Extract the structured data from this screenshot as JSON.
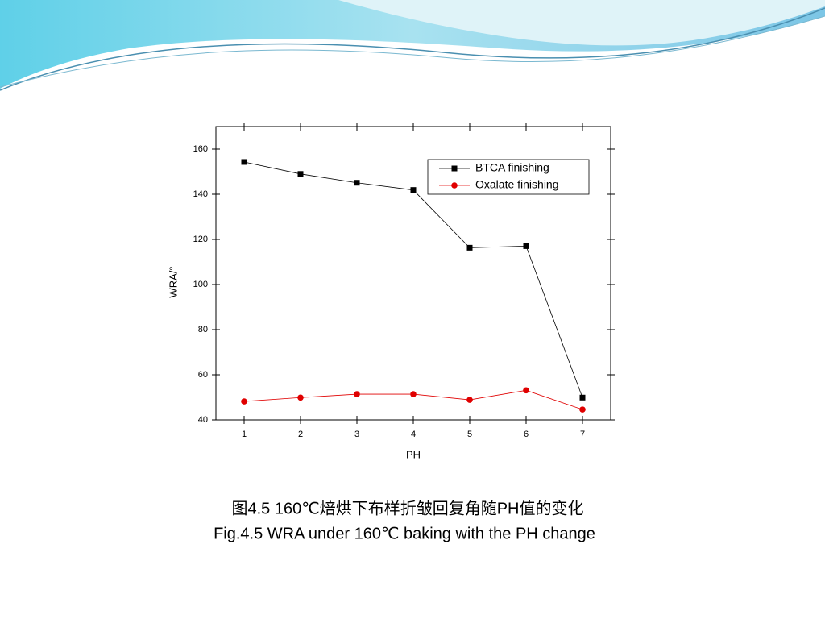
{
  "chart_data": {
    "type": "line",
    "x_label": "PH",
    "y_label": "WRA/°",
    "x": [
      1,
      2,
      3,
      4,
      5,
      6,
      7
    ],
    "xlim": [
      0.5,
      7.5
    ],
    "xticks": [
      1,
      2,
      3,
      4,
      5,
      6,
      7
    ],
    "ylim": [
      40,
      170
    ],
    "yticks": [
      40,
      60,
      80,
      100,
      120,
      140,
      160
    ],
    "grid": false,
    "legend_position": "upper right",
    "series": [
      {
        "name": "BTCA finishing",
        "color": "#000000",
        "marker": "square",
        "values": [
          154.3,
          149,
          145.1,
          141.9,
          116.3,
          117,
          49.9
        ]
      },
      {
        "name": "Oxalate finishing",
        "color": "#e00000",
        "marker": "circle",
        "values": [
          48.2,
          49.9,
          51.4,
          51.4,
          48.9,
          53.1,
          44.6
        ]
      }
    ],
    "caption_cn": "图4.5 160℃焙烘下布样折皱回复角随PH值的变化",
    "caption_en": "Fig.4.5 WRA under 160℃ baking with the PH change"
  }
}
